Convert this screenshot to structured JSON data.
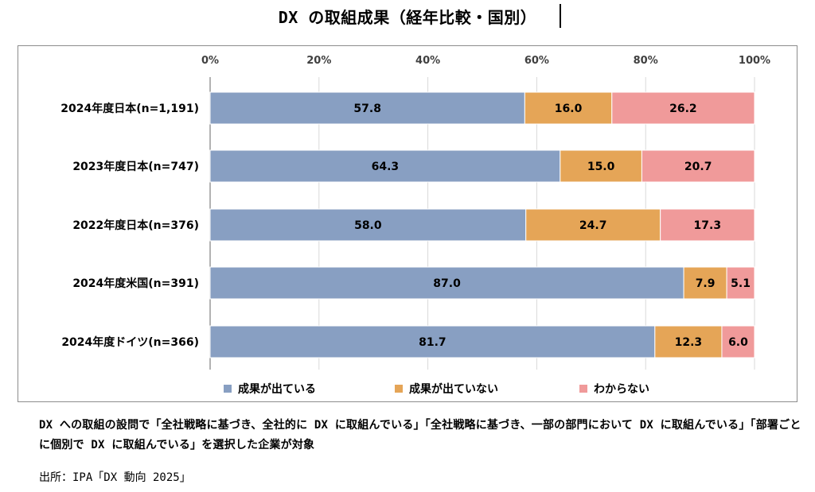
{
  "title": "DX の取組成果（経年比較・国別）",
  "chart_data": {
    "type": "bar",
    "orientation": "horizontal",
    "stacked": true,
    "percent": true,
    "categories": [
      "2024年度日本(n=1,191)",
      "2023年度日本(n=747)",
      "2022年度日本(n=376)",
      "2024年度米国(n=391)",
      "2024年度ドイツ(n=366)"
    ],
    "series": [
      {
        "name": "成果が出ている",
        "color": "#889fc2",
        "values": [
          57.8,
          64.3,
          58.0,
          87.0,
          81.7
        ],
        "labels": [
          "57.8",
          "64.3",
          "58.0",
          "87.0",
          "81.7"
        ]
      },
      {
        "name": "成果が出ていない",
        "color": "#e5a557",
        "values": [
          16.0,
          15.0,
          24.7,
          7.9,
          12.3
        ],
        "labels": [
          "16.0",
          "15.0",
          "24.7",
          "7.9",
          "12.3"
        ]
      },
      {
        "name": "わからない",
        "color": "#f09a9a",
        "values": [
          26.2,
          20.7,
          17.3,
          5.1,
          6.0
        ],
        "labels": [
          "26.2",
          "20.7",
          "17.3",
          "5.1",
          "6.0"
        ]
      }
    ],
    "x_ticks": [
      "0%",
      "20%",
      "40%",
      "60%",
      "80%",
      "100%"
    ],
    "xlim": [
      0,
      100
    ],
    "grid": true,
    "legend_position": "bottom"
  },
  "note": "DX への取組の設問で「全社戦略に基づき、全社的に DX に取組んでいる」「全社戦略に基づき、一部の部門において DX に取組んでいる」「部署ごとに個別で DX に取組んでいる」を選択した企業が対象",
  "source": "出所：IPA「DX 動向 2025」"
}
